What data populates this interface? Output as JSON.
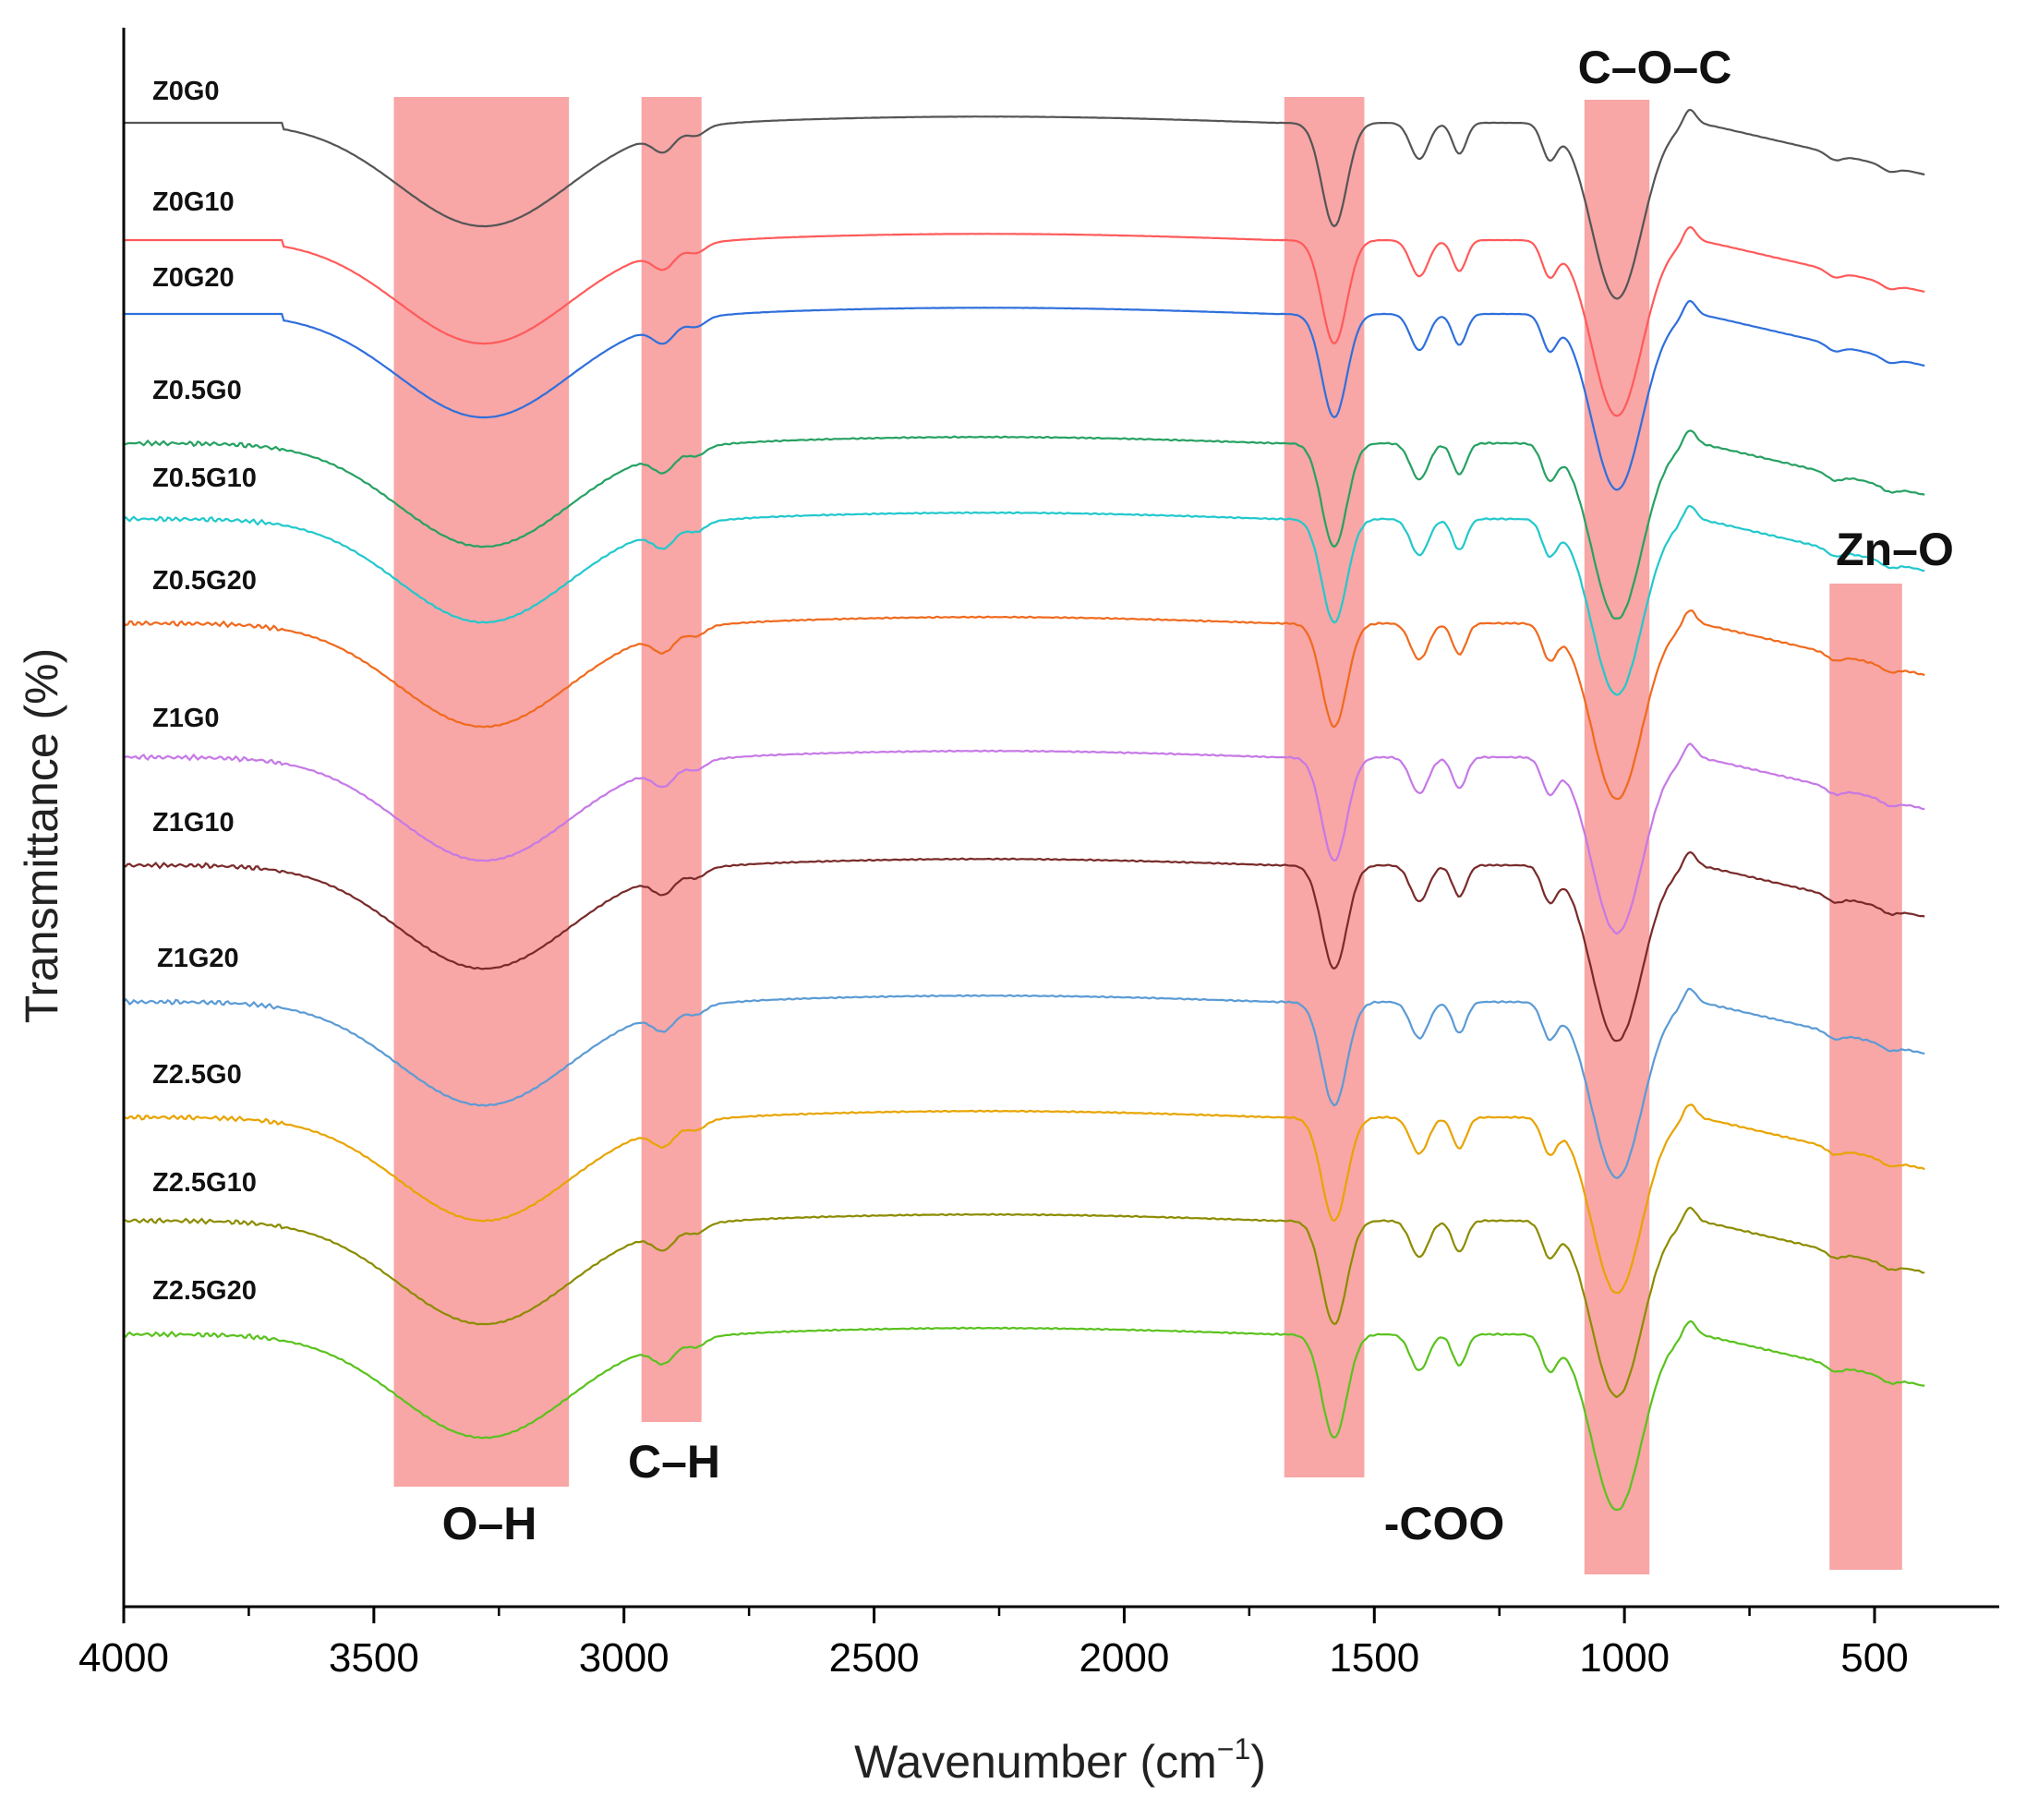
{
  "chart_data": {
    "type": "line",
    "title": "",
    "xlabel": "Wavenumber (cm",
    "xlabel_sup": "−1",
    "xlabel_close": ")",
    "ylabel": "Transmittance (%)",
    "xlim": [
      4000,
      400
    ],
    "x_reversed": true,
    "x_ticks": [
      4000,
      3500,
      3000,
      2500,
      2000,
      1500,
      1000,
      500
    ],
    "grid": false,
    "y_ticks_shown": false,
    "band_color": "#f8a6a6",
    "bands": [
      {
        "label": "O–H",
        "x_range": [
          3460,
          3110
        ],
        "label_position": "bottom"
      },
      {
        "label": "C–H",
        "x_range": [
          2965,
          2845
        ],
        "label_position": "bottom"
      },
      {
        "label": "-COO",
        "x_range": [
          1680,
          1520
        ],
        "label_position": "bottom"
      },
      {
        "label": "C–O–C",
        "x_range": [
          1080,
          950
        ],
        "label_position": "top"
      },
      {
        "label": "Zn–O",
        "x_range": [
          590,
          445
        ],
        "label_position": "top"
      }
    ],
    "spectrum_features": {
      "baseline_start": 3680,
      "features": [
        {
          "center": 3280,
          "width": 170,
          "depth": 1.0
        },
        {
          "center": 2920,
          "width": 22,
          "depth": 0.18
        },
        {
          "center": 2855,
          "width": 18,
          "depth": 0.08
        },
        {
          "center": 1580,
          "width": 25,
          "depth": 1.0
        },
        {
          "center": 1410,
          "width": 18,
          "depth": 0.35
        },
        {
          "center": 1330,
          "width": 14,
          "depth": 0.3
        },
        {
          "center": 1150,
          "width": 15,
          "depth": 0.32
        },
        {
          "center": 1015,
          "width": 50,
          "depth": 1.7
        },
        {
          "center": 870,
          "width": 12,
          "depth": -0.15
        },
        {
          "center": 580,
          "width": 15,
          "depth": 0.06
        },
        {
          "center": 470,
          "width": 15,
          "depth": 0.05
        }
      ]
    },
    "series": [
      {
        "name": "Z0G0",
        "color": "#555555",
        "noise": 0.02
      },
      {
        "name": "Z0G10",
        "color": "#ff5a5a",
        "noise": 0.02
      },
      {
        "name": "Z0G20",
        "color": "#2f6fdc",
        "noise": 0.02
      },
      {
        "name": "Z0.5G0",
        "color": "#27a163",
        "noise": 0.1
      },
      {
        "name": "Z0.5G10",
        "color": "#22c8cc",
        "noise": 0.1
      },
      {
        "name": "Z0.5G20",
        "color": "#f06a1e",
        "noise": 0.1
      },
      {
        "name": "Z1G0",
        "color": "#c679e6",
        "noise": 0.1
      },
      {
        "name": "Z1G10",
        "color": "#7a2a2a",
        "noise": 0.1
      },
      {
        "name": "Z1G20",
        "color": "#5b9bd5",
        "noise": 0.1
      },
      {
        "name": "Z2.5G0",
        "color": "#e8a400",
        "noise": 0.1
      },
      {
        "name": "Z2.5G10",
        "color": "#8c8c00",
        "noise": 0.1
      },
      {
        "name": "Z2.5G20",
        "color": "#5ac21e",
        "noise": 0.1
      }
    ]
  }
}
